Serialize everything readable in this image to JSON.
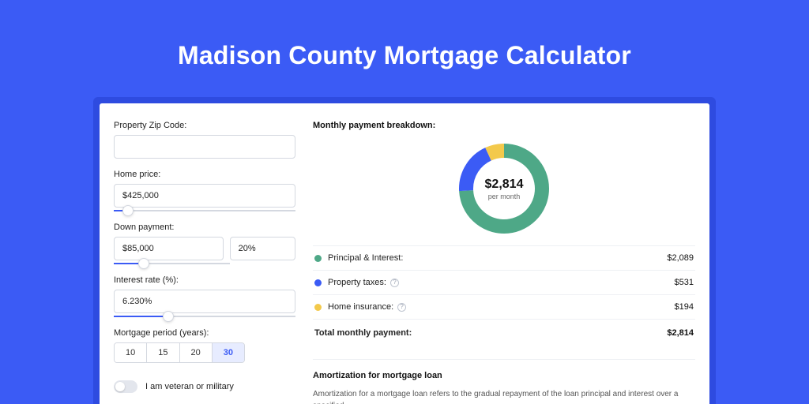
{
  "page": {
    "title": "Madison County Mortgage Calculator",
    "background_color": "#3b5bf5",
    "shadow_color": "#2e4be0",
    "panel_color": "#ffffff"
  },
  "form": {
    "zip": {
      "label": "Property Zip Code:",
      "value": ""
    },
    "home_price": {
      "label": "Home price:",
      "value": "$425,000",
      "slider_pct": 8
    },
    "down": {
      "label": "Down payment:",
      "amount": "$85,000",
      "pct": "20%",
      "slider_pct": 26
    },
    "rate": {
      "label": "Interest rate (%):",
      "value": "6.230%",
      "slider_pct": 30
    },
    "period": {
      "label": "Mortgage period (years):",
      "options": [
        "10",
        "15",
        "20",
        "30"
      ],
      "selected": "30"
    },
    "veteran": {
      "label": "I am veteran or military",
      "checked": false
    }
  },
  "breakdown": {
    "title": "Monthly payment breakdown:",
    "total_amount": "$2,814",
    "per_month": "per month",
    "items": [
      {
        "label": "Principal & Interest:",
        "value": "$2,089",
        "color": "#4ea887",
        "pct": 74,
        "info": false
      },
      {
        "label": "Property taxes:",
        "value": "$531",
        "color": "#3b5bf5",
        "pct": 19,
        "info": true
      },
      {
        "label": "Home insurance:",
        "value": "$194",
        "color": "#f3c94b",
        "pct": 7,
        "info": true
      }
    ],
    "total_row": {
      "label": "Total monthly payment:",
      "value": "$2,814"
    }
  },
  "amort": {
    "title": "Amortization for mortgage loan",
    "body": "Amortization for a mortgage loan refers to the gradual repayment of the loan principal and interest over a specified"
  },
  "style": {
    "border_color": "#d4d8e0",
    "divider_color": "#eef0f4",
    "text_color": "#222222",
    "muted_text": "#666666",
    "label_fontsize": 11,
    "title_fontsize": 32
  }
}
